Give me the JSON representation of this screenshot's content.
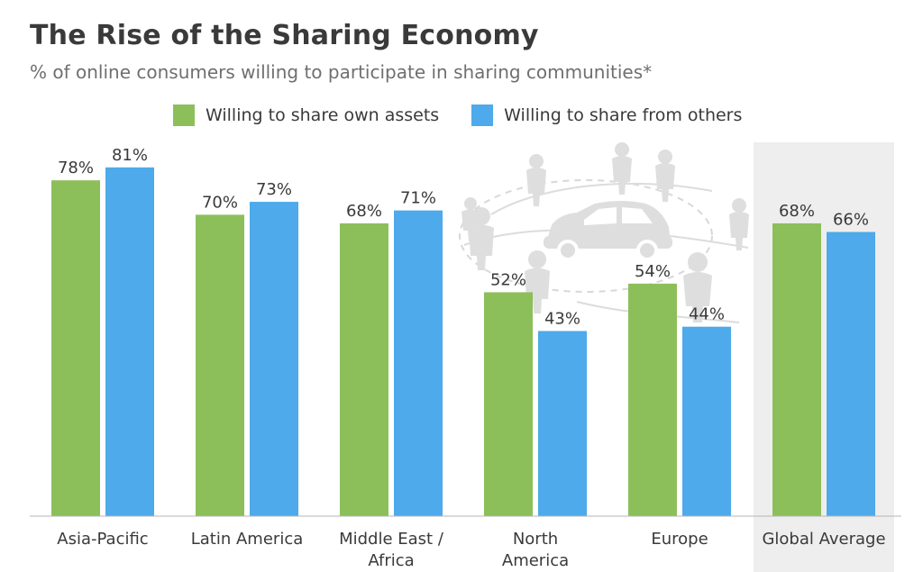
{
  "chart_data": {
    "type": "bar",
    "title": "The Rise of the Sharing Economy",
    "subtitle": "% of online consumers willing to participate in sharing communities*",
    "categories": [
      [
        "Asia-Pacific"
      ],
      [
        "Latin America"
      ],
      [
        "Middle East /",
        "Africa"
      ],
      [
        "North",
        "America"
      ],
      [
        "Europe"
      ],
      [
        "Global Average"
      ]
    ],
    "series": [
      {
        "name": "Willing to share own assets",
        "color": "#8cbf5a",
        "values": [
          78,
          70,
          68,
          52,
          54,
          68
        ]
      },
      {
        "name": "Willing to share from others",
        "color": "#4eaaea",
        "values": [
          81,
          73,
          71,
          43,
          44,
          66
        ]
      }
    ],
    "value_suffix": "%",
    "ylim": [
      0,
      100
    ],
    "grid": false,
    "legend_position": "top",
    "highlight_category": 5,
    "highlight_color": "#eeeeee",
    "label_color": "#3a3a3a",
    "decoration": "car-sharing-illustration"
  }
}
